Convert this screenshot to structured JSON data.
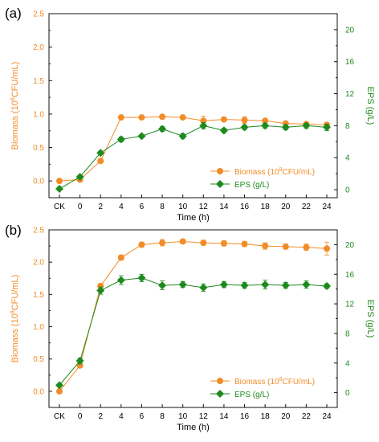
{
  "colors": {
    "biomass": "#f28c28",
    "eps": "#1e8a1e",
    "axis": "#111111"
  },
  "chart_data": [
    {
      "panel_label": "(a)",
      "type": "line",
      "xlabel": "Time (h)",
      "ylabel_left_parts": [
        "Biomass (10",
        "8",
        "CFU/mL)"
      ],
      "ylabel_right": "EPS (g/L)",
      "categories": [
        "CK",
        "0",
        "2",
        "4",
        "6",
        "8",
        "10",
        "12",
        "14",
        "16",
        "18",
        "20",
        "22",
        "24"
      ],
      "ylim_left": [
        -0.25,
        2.5
      ],
      "yticks_left": [
        "0.0",
        "0.5",
        "1.0",
        "1.5",
        "2.0",
        "2.5"
      ],
      "ylim_right": [
        -1,
        22
      ],
      "yticks_right": [
        "0",
        "4",
        "8",
        "12",
        "16",
        "20"
      ],
      "legend_position": "bottom-right",
      "series": [
        {
          "name_parts": [
            "Biomass (10",
            "8",
            "CFU/mL)"
          ],
          "axis": "left",
          "marker": "circle",
          "values": [
            0.0,
            0.02,
            0.3,
            0.95,
            0.95,
            0.96,
            0.95,
            0.9,
            0.92,
            0.91,
            0.9,
            0.86,
            0.85,
            0.84
          ],
          "errors": [
            0.01,
            0.01,
            0.02,
            0.02,
            0.02,
            0.02,
            0.02,
            0.07,
            0.02,
            0.05,
            0.02,
            0.02,
            0.03,
            0.02
          ]
        },
        {
          "name": "EPS (g/L)",
          "axis": "right",
          "marker": "diamond",
          "values": [
            0.1,
            1.6,
            4.6,
            6.3,
            6.7,
            7.6,
            6.7,
            8.0,
            7.4,
            7.8,
            8.0,
            7.8,
            8.0,
            7.8
          ],
          "errors": [
            0.1,
            0.2,
            0.2,
            0.3,
            0.2,
            0.3,
            0.3,
            0.4,
            0.3,
            0.3,
            0.3,
            0.3,
            0.3,
            0.4
          ]
        }
      ]
    },
    {
      "panel_label": "(b)",
      "type": "line",
      "xlabel": "Time (h)",
      "ylabel_left_parts": [
        "Biomass (10",
        "8",
        "CFU/mL)"
      ],
      "ylabel_right": "EPS (g/L)",
      "categories": [
        "CK",
        "0",
        "2",
        "4",
        "6",
        "8",
        "10",
        "12",
        "14",
        "16",
        "18",
        "20",
        "22",
        "24"
      ],
      "ylim_left": [
        -0.25,
        2.5
      ],
      "yticks_left": [
        "0.0",
        "0.5",
        "1.0",
        "1.5",
        "2.0",
        "2.5"
      ],
      "ylim_right": [
        -2,
        22
      ],
      "yticks_right": [
        "0",
        "4",
        "8",
        "12",
        "16",
        "20"
      ],
      "legend_position": "bottom-right",
      "series": [
        {
          "name_parts": [
            "Biomass (10",
            "8",
            "CFU/mL)"
          ],
          "axis": "left",
          "marker": "circle",
          "values": [
            0.0,
            0.4,
            1.63,
            2.07,
            2.27,
            2.3,
            2.32,
            2.3,
            2.29,
            2.28,
            2.25,
            2.24,
            2.23,
            2.21
          ],
          "errors": [
            0.01,
            0.03,
            0.04,
            0.04,
            0.04,
            0.05,
            0.03,
            0.04,
            0.04,
            0.04,
            0.05,
            0.04,
            0.05,
            0.1
          ]
        },
        {
          "name": "EPS (g/L)",
          "axis": "right",
          "marker": "diamond",
          "values": [
            1.0,
            4.3,
            13.8,
            15.2,
            15.5,
            14.5,
            14.6,
            14.2,
            14.6,
            14.5,
            14.6,
            14.5,
            14.6,
            14.4
          ],
          "errors": [
            0.1,
            0.4,
            0.5,
            0.6,
            0.5,
            0.6,
            0.4,
            0.5,
            0.4,
            0.4,
            0.6,
            0.4,
            0.5,
            0.3
          ]
        }
      ]
    }
  ]
}
